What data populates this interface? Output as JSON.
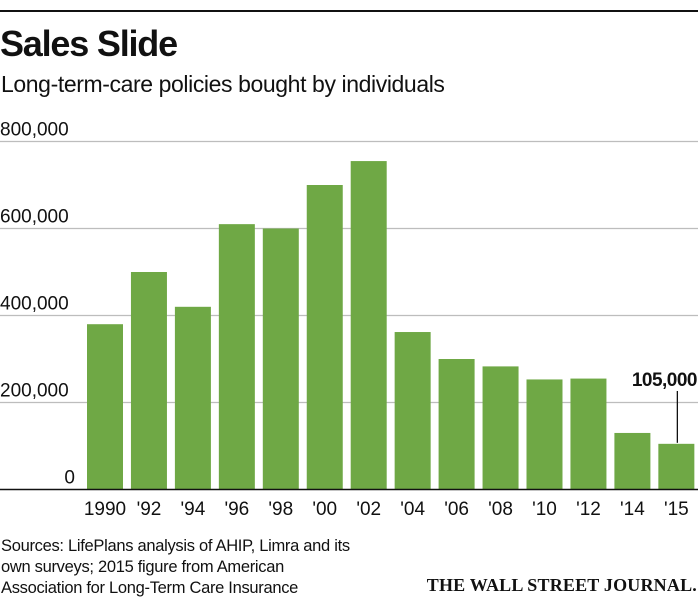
{
  "header": {
    "title": "Sales Slide",
    "subtitle": "Long-term-care policies bought by individuals"
  },
  "chart_data": {
    "type": "bar",
    "title": "Sales Slide",
    "subtitle": "Long-term-care policies bought by individuals",
    "xlabel": "",
    "ylabel": "",
    "categories": [
      "1990",
      "'92",
      "'94",
      "'96",
      "'98",
      "'00",
      "'02",
      "'04",
      "'06",
      "'08",
      "'10",
      "'12",
      "'14",
      "'15"
    ],
    "values": [
      380000,
      500000,
      420000,
      610000,
      600000,
      700000,
      755000,
      362000,
      300000,
      283000,
      253000,
      255000,
      130000,
      105000
    ],
    "ylim": [
      0,
      800000
    ],
    "yticks": [
      0,
      200000,
      400000,
      600000,
      800000
    ],
    "ytick_labels": [
      "0",
      "200,000",
      "400,000",
      "600,000",
      "800,000"
    ],
    "grid": true,
    "bar_color": "#6fa845",
    "grid_color": "#bdbdbd",
    "annotations": [
      {
        "category": "'15",
        "text": "105,000"
      }
    ]
  },
  "footer": {
    "sources": "Sources: LifePlans analysis of AHIP, Limra and its own surveys; 2015 figure from American Association for Long-Term Care Insurance",
    "brand": "THE WALL STREET JOURNAL."
  }
}
